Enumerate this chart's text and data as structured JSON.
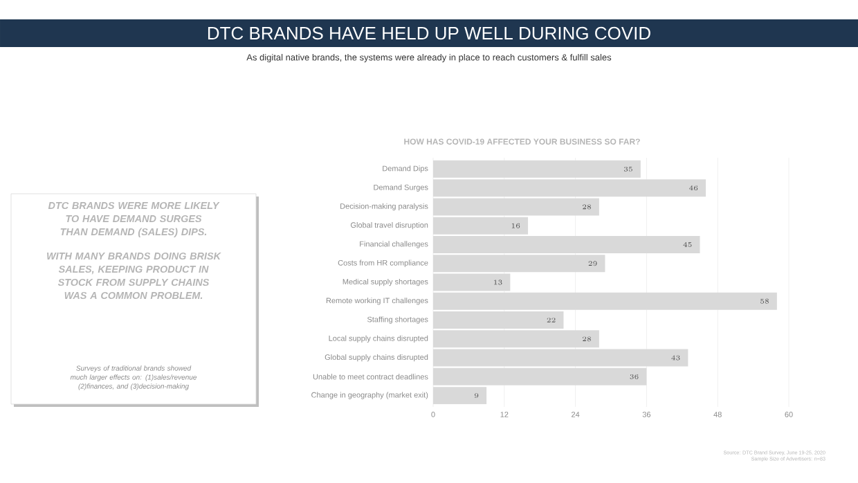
{
  "chart_data": {
    "type": "bar",
    "orientation": "horizontal",
    "title": "HOW HAS COVID-19 AFFECTED YOUR BUSINESS SO FAR?",
    "categories": [
      "Demand Dips",
      "Demand Surges",
      "Decision-making paralysis",
      "Global travel disruption",
      "Financial challenges",
      "Costs from HR compliance",
      "Medical supply shortages",
      "Remote working IT challenges",
      "Staffing shortages",
      "Local supply chains disrupted",
      "Global supply chains disrupted",
      "Unable to meet contract deadlines",
      "Change in geography (market exit)"
    ],
    "values": [
      35,
      46,
      28,
      16,
      45,
      29,
      13,
      58,
      22,
      28,
      43,
      36,
      9
    ],
    "color": "#d9d9d9",
    "data_labels": true,
    "grid": "x",
    "xlim": [
      0,
      60
    ],
    "xticks": [
      0,
      12,
      24,
      36,
      48,
      60
    ],
    "annotations": [
      "DTC BRANDS HAVE HELD UP WELL DURING COVID",
      "As digital native brands, the systems were already in place to reach customers & fulfill sales",
      "DTC BRANDS WERE MORE LIKELY TO HAVE DEMAND SURGES THAN DEMAND (SALES) DIPS.",
      "WITH MANY BRANDS DOING BRISK SALES, KEEPING PRODUCT IN STOCK FROM SUPPLY CHAINS WAS A COMMON PROBLEM.",
      "Surveys of traditional brands showed much larger effects on: (1)sales/revenue (2)finances, and (3)decision-making",
      "Source: DTC Brand Survey, June 19-25, 2020",
      "Sample Size of Advertisers: n=83"
    ]
  }
}
